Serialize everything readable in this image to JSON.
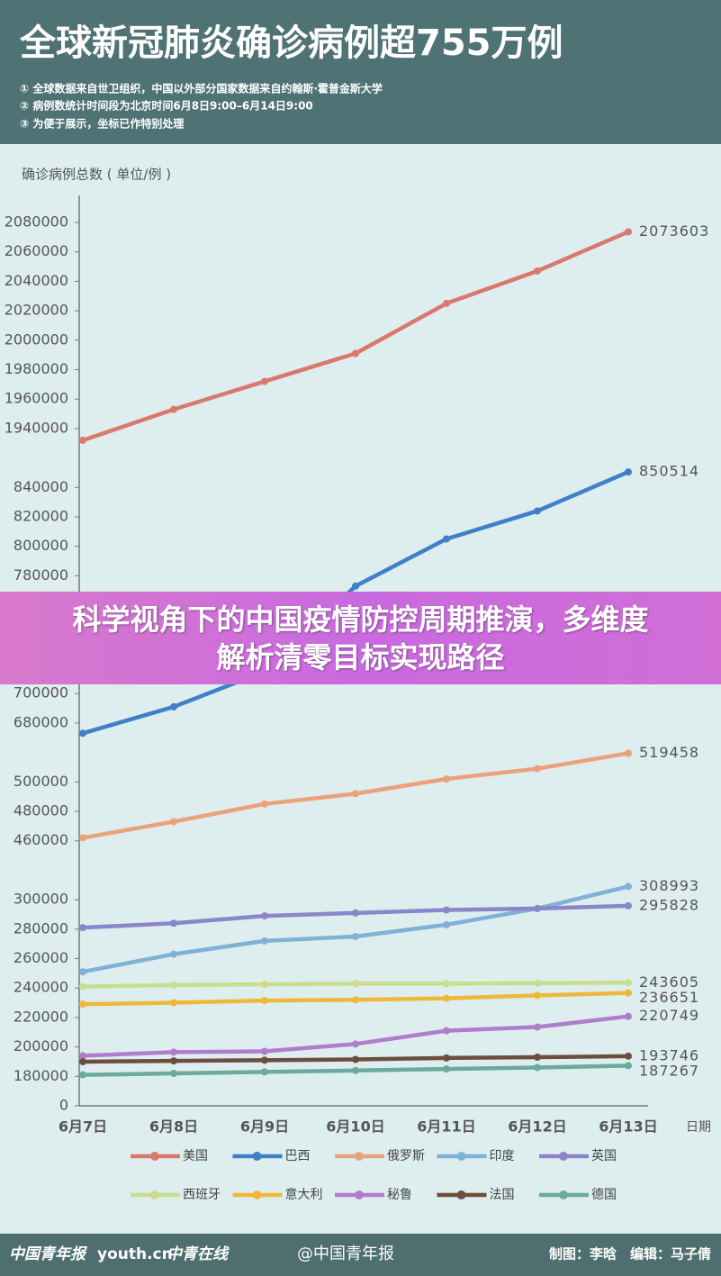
{
  "header": {
    "title": "全球新冠肺炎确诊病例超755万例",
    "notes": [
      "① 全球数据来自世卫组织，中国以外部分国家数据来自约翰斯·霍普金斯大学",
      "② 病例数统计时间段为北京时间6月8日9:00–6月14日9:00",
      "③ 为便于展示，坐标已作特别处理"
    ]
  },
  "chart_data": {
    "type": "line",
    "y_label": "确诊病例总数 ( 单位/例 )",
    "x_label": "日期",
    "categories": [
      "6月7日",
      "6月8日",
      "6月9日",
      "6月10日",
      "6月11日",
      "6月12日",
      "6月13日"
    ],
    "series": [
      {
        "name": "美国",
        "color": "#d9786c",
        "values": [
          1932000,
          1953000,
          1972000,
          1991000,
          2025000,
          2047000,
          2073603
        ]
      },
      {
        "name": "巴西",
        "color": "#3f80c6",
        "values": [
          673000,
          691000,
          715000,
          773000,
          805000,
          824000,
          850514
        ]
      },
      {
        "name": "俄罗斯",
        "color": "#e9a27c",
        "values": [
          462000,
          473000,
          485000,
          492000,
          502000,
          509000,
          519458
        ]
      },
      {
        "name": "印度",
        "color": "#80b1d6",
        "values": [
          251000,
          263000,
          272000,
          275000,
          283000,
          294000,
          308993
        ]
      },
      {
        "name": "英国",
        "color": "#8b86c9",
        "values": [
          281000,
          284000,
          289000,
          291000,
          293000,
          294000,
          295828
        ]
      },
      {
        "name": "西班牙",
        "color": "#cadd8c",
        "values": [
          241000,
          242000,
          242500,
          243000,
          243000,
          243300,
          243605
        ]
      },
      {
        "name": "意大利",
        "color": "#f0b83a",
        "values": [
          229000,
          230000,
          231500,
          232000,
          233000,
          235000,
          236651
        ]
      },
      {
        "name": "秘鲁",
        "color": "#b07dcd",
        "values": [
          194000,
          196500,
          197000,
          202000,
          211000,
          213500,
          220749
        ]
      },
      {
        "name": "法国",
        "color": "#6b4e3d",
        "values": [
          190000,
          190500,
          191000,
          191500,
          192500,
          193000,
          193746
        ]
      },
      {
        "name": "德国",
        "color": "#6aab99",
        "values": [
          181000,
          182000,
          183000,
          184000,
          185000,
          186000,
          187267
        ]
      }
    ],
    "ylim": [
      0,
      2080000
    ],
    "yticks": [
      0,
      180000,
      200000,
      220000,
      240000,
      260000,
      280000,
      300000,
      460000,
      480000,
      500000,
      680000,
      700000,
      720000,
      740000,
      760000,
      780000,
      800000,
      820000,
      840000,
      1940000,
      1960000,
      1980000,
      2000000,
      2020000,
      2040000,
      2060000,
      2080000
    ],
    "grid": false,
    "legend": "bottom"
  },
  "banner": {
    "text": "科学视角下的中国疫情防控周期推演，多维度解析清零目标实现路径"
  },
  "footer": {
    "logos": [
      "中国青年报",
      "youth.cn",
      "中青在线"
    ],
    "weibo": "@中国青年报",
    "credit": "制图：李晗　编辑：马子倩"
  }
}
